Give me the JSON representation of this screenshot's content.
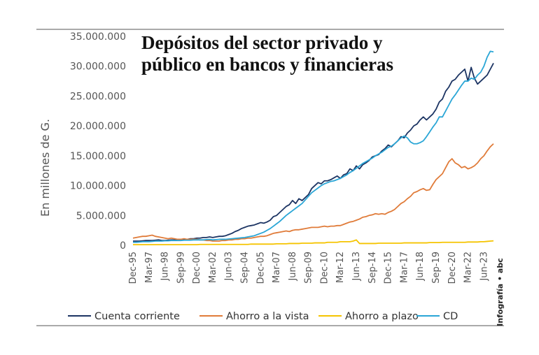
{
  "chart_data": {
    "type": "line",
    "title": [
      "Depósitos del sector privado y",
      "público en bancos y financieras"
    ],
    "y_label": "En millones de G.",
    "credit": "Infografía • abc",
    "categories": [
      "Dec-95",
      null,
      null,
      null,
      null,
      "Mar-97",
      null,
      null,
      null,
      null,
      "Jun-98",
      null,
      null,
      null,
      null,
      "Sep-99",
      null,
      null,
      null,
      null,
      "Dec-00",
      null,
      null,
      null,
      null,
      "Mar-02",
      null,
      null,
      null,
      null,
      "Jun-03",
      null,
      null,
      null,
      null,
      "Sep-04",
      null,
      null,
      null,
      null,
      "Dec-05",
      null,
      null,
      null,
      null,
      "Mar-07",
      null,
      null,
      null,
      null,
      "Jun-08",
      null,
      null,
      null,
      null,
      "Sep-09",
      null,
      null,
      null,
      null,
      "Dec-10",
      null,
      null,
      null,
      null,
      "Mar-12",
      null,
      null,
      null,
      null,
      "Jun-13",
      null,
      null,
      null,
      null,
      "Sep-14",
      null,
      null,
      null,
      null,
      "Dec-15",
      null,
      null,
      null,
      null,
      "Mar-17",
      null,
      null,
      null,
      null,
      "Jun-18",
      null,
      null,
      null,
      null,
      "Sep-19",
      null,
      null,
      null,
      null,
      "Dec-20",
      null,
      null,
      null,
      null,
      "Mar-22",
      null,
      null,
      null,
      null,
      "Jun-23",
      null,
      null,
      null
    ],
    "series": [
      {
        "name": "Cuenta corriente",
        "color": "#1c3463",
        "values": [
          700000,
          700000,
          700000,
          750000,
          800000,
          800000,
          800000,
          850000,
          900000,
          800000,
          800000,
          850000,
          900000,
          900000,
          900000,
          1000000,
          1000000,
          1000000,
          1100000,
          1100000,
          1200000,
          1200000,
          1300000,
          1300000,
          1400000,
          1300000,
          1400000,
          1500000,
          1500000,
          1600000,
          1800000,
          2000000,
          2300000,
          2500000,
          2800000,
          3000000,
          3200000,
          3300000,
          3400000,
          3600000,
          3800000,
          3700000,
          3900000,
          4200000,
          4800000,
          5000000,
          5500000,
          6000000,
          6500000,
          6800000,
          7500000,
          7000000,
          7800000,
          7500000,
          8000000,
          8500000,
          9500000,
          10000000,
          10500000,
          10300000,
          10800000,
          10800000,
          11000000,
          11300000,
          11600000,
          11200000,
          11800000,
          12000000,
          12800000,
          12500000,
          13300000,
          12800000,
          13500000,
          13800000,
          14200000,
          14800000,
          15000000,
          15200000,
          15800000,
          16200000,
          16800000,
          16500000,
          17000000,
          17500000,
          18200000,
          18000000,
          18800000,
          19300000,
          20000000,
          20300000,
          21000000,
          21500000,
          21000000,
          21500000,
          22000000,
          22800000,
          24000000,
          24500000,
          25800000,
          26500000,
          27500000,
          27800000,
          28500000,
          29000000,
          29500000,
          27500000,
          29800000,
          28000000,
          27000000,
          27500000,
          28000000,
          28500000,
          29500000,
          30500000
        ]
      },
      {
        "name": "Ahorro a la vista",
        "color": "#e07b39",
        "values": [
          1200000,
          1300000,
          1400000,
          1500000,
          1500000,
          1600000,
          1700000,
          1500000,
          1400000,
          1300000,
          1200000,
          1100000,
          1200000,
          1100000,
          1000000,
          1000000,
          1100000,
          1000000,
          1000000,
          1000000,
          1000000,
          900000,
          900000,
          800000,
          800000,
          700000,
          700000,
          700000,
          800000,
          800000,
          900000,
          900000,
          1000000,
          1000000,
          1100000,
          1100000,
          1200000,
          1200000,
          1300000,
          1400000,
          1500000,
          1500000,
          1600000,
          1800000,
          2000000,
          2100000,
          2200000,
          2300000,
          2400000,
          2300000,
          2500000,
          2600000,
          2600000,
          2700000,
          2800000,
          2900000,
          3000000,
          3000000,
          3000000,
          3100000,
          3200000,
          3100000,
          3200000,
          3200000,
          3300000,
          3300000,
          3500000,
          3700000,
          3900000,
          4000000,
          4200000,
          4400000,
          4700000,
          4800000,
          5000000,
          5100000,
          5300000,
          5200000,
          5300000,
          5200000,
          5500000,
          5700000,
          6000000,
          6500000,
          7000000,
          7300000,
          7800000,
          8200000,
          8800000,
          9000000,
          9300000,
          9500000,
          9200000,
          9300000,
          10200000,
          11000000,
          11500000,
          12000000,
          13000000,
          14000000,
          14500000,
          13800000,
          13500000,
          13000000,
          13200000,
          12800000,
          13000000,
          13300000,
          13800000,
          14500000,
          15000000,
          15800000,
          16500000,
          17000000
        ]
      },
      {
        "name": "Ahorro a plazo",
        "color": "#f5c400",
        "values": [
          100000,
          100000,
          100000,
          100000,
          100000,
          100000,
          100000,
          100000,
          100000,
          100000,
          100000,
          100000,
          100000,
          100000,
          100000,
          100000,
          100000,
          100000,
          100000,
          100000,
          100000,
          150000,
          150000,
          150000,
          150000,
          150000,
          150000,
          150000,
          150000,
          150000,
          150000,
          150000,
          150000,
          150000,
          150000,
          150000,
          150000,
          200000,
          200000,
          200000,
          200000,
          200000,
          200000,
          200000,
          200000,
          250000,
          250000,
          250000,
          250000,
          300000,
          300000,
          300000,
          300000,
          350000,
          350000,
          350000,
          350000,
          400000,
          400000,
          400000,
          400000,
          500000,
          500000,
          500000,
          500000,
          600000,
          600000,
          600000,
          600000,
          700000,
          900000,
          300000,
          300000,
          300000,
          300000,
          300000,
          300000,
          350000,
          350000,
          350000,
          350000,
          350000,
          350000,
          350000,
          350000,
          400000,
          400000,
          400000,
          400000,
          400000,
          400000,
          400000,
          400000,
          450000,
          450000,
          450000,
          450000,
          500000,
          500000,
          500000,
          500000,
          500000,
          500000,
          500000,
          500000,
          550000,
          550000,
          550000,
          550000,
          600000,
          600000,
          650000,
          700000,
          750000
        ]
      },
      {
        "name": "CD",
        "color": "#2aa6d6",
        "values": [
          500000,
          500000,
          550000,
          600000,
          600000,
          600000,
          650000,
          700000,
          700000,
          700000,
          750000,
          750000,
          800000,
          800000,
          800000,
          800000,
          850000,
          850000,
          850000,
          900000,
          900000,
          900000,
          900000,
          950000,
          1000000,
          900000,
          950000,
          1000000,
          1000000,
          1000000,
          1050000,
          1100000,
          1150000,
          1200000,
          1250000,
          1300000,
          1400000,
          1500000,
          1600000,
          1800000,
          2000000,
          2200000,
          2500000,
          2800000,
          3200000,
          3600000,
          4000000,
          4500000,
          5000000,
          5400000,
          5800000,
          6200000,
          6600000,
          7000000,
          7600000,
          8200000,
          8800000,
          9200000,
          9600000,
          10000000,
          10300000,
          10500000,
          10700000,
          10800000,
          11000000,
          11200000,
          11500000,
          11800000,
          12200000,
          12500000,
          12900000,
          13300000,
          13700000,
          14000000,
          14300000,
          14600000,
          15000000,
          15300000,
          15600000,
          16000000,
          16400000,
          16600000,
          17000000,
          17500000,
          18000000,
          18300000,
          18000000,
          17300000,
          17000000,
          17000000,
          17200000,
          17500000,
          18200000,
          19000000,
          19800000,
          20500000,
          21500000,
          21500000,
          22500000,
          23500000,
          24500000,
          25200000,
          26000000,
          26800000,
          27500000,
          27500000,
          28000000,
          27800000,
          28500000,
          29000000,
          30000000,
          31500000,
          32500000,
          32400000
        ]
      }
    ],
    "ylim": [
      0,
      35000000
    ],
    "yticks": [
      0,
      {
        "value": 5000000,
        "label": "5.000.000"
      },
      {
        "value": 10000000,
        "label": "10.000.000"
      },
      {
        "value": 15000000,
        "label": "15.000.000"
      },
      {
        "value": 20000000,
        "label": "20.000.000"
      },
      {
        "value": 25000000,
        "label": "25.000.000"
      },
      {
        "value": 30000000,
        "label": "30.000.000"
      },
      {
        "value": 35000000,
        "label": "35.000.000"
      }
    ],
    "grid": false,
    "legend": "bottom"
  }
}
